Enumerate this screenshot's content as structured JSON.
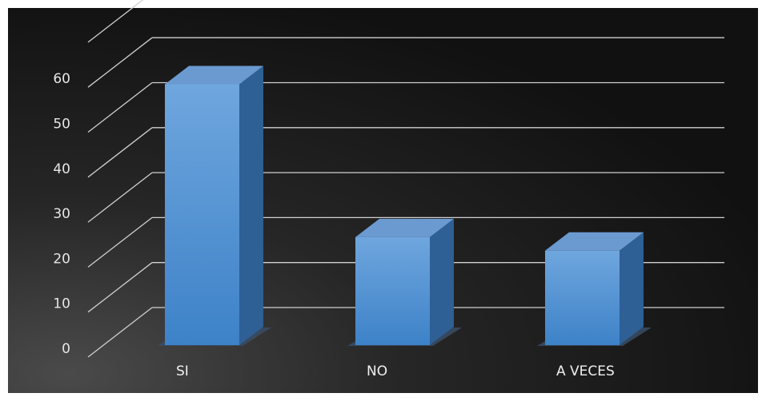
{
  "chart_data": {
    "type": "bar",
    "style": "3d-column",
    "categories": [
      "SI",
      "NO",
      "A VECES"
    ],
    "values": [
      58,
      24,
      21
    ],
    "ylim": [
      0,
      60
    ],
    "yticks": [
      0,
      10,
      20,
      30,
      40,
      50,
      60
    ],
    "grid": true,
    "legend": "none",
    "colors": {
      "background_dark": "#111111",
      "background_light": "#4a4a4a",
      "bar_front_top": "#6fa6de",
      "bar_front_bottom": "#3d82c8",
      "bar_top": "#6b9ad0",
      "bar_side": "#2e5f95",
      "gridline": "#d0d0d0",
      "text": "#e6e6e6"
    }
  }
}
